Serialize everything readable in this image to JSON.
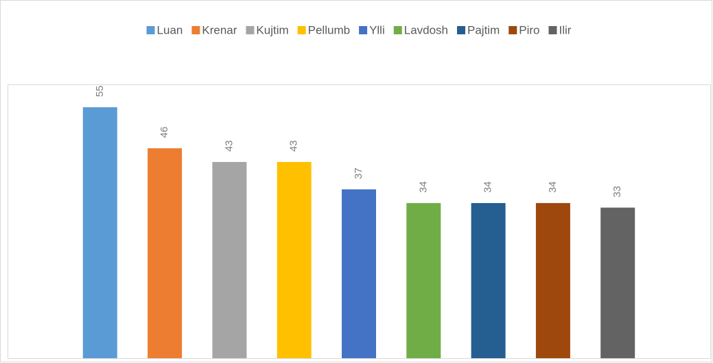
{
  "chart_data": {
    "type": "bar",
    "categories": [
      null
    ],
    "series": [
      {
        "name": "Luan",
        "color": "#5b9bd5",
        "values": [
          55
        ]
      },
      {
        "name": "Krenar",
        "color": "#ed7d31",
        "values": [
          46
        ]
      },
      {
        "name": "Kujtim",
        "color": "#a5a5a5",
        "values": [
          43
        ]
      },
      {
        "name": "Pellumb",
        "color": "#ffc000",
        "values": [
          43
        ]
      },
      {
        "name": "Ylli",
        "color": "#4472c4",
        "values": [
          37
        ]
      },
      {
        "name": "Lavdosh",
        "color": "#70ad47",
        "values": [
          34
        ]
      },
      {
        "name": "Pajtim",
        "color": "#255e91",
        "values": [
          34
        ]
      },
      {
        "name": "Piro",
        "color": "#9e480e",
        "values": [
          34
        ]
      },
      {
        "name": "Ilir",
        "color": "#636363",
        "values": [
          33
        ]
      }
    ],
    "ylim": [
      0,
      60
    ],
    "legend": "top"
  }
}
